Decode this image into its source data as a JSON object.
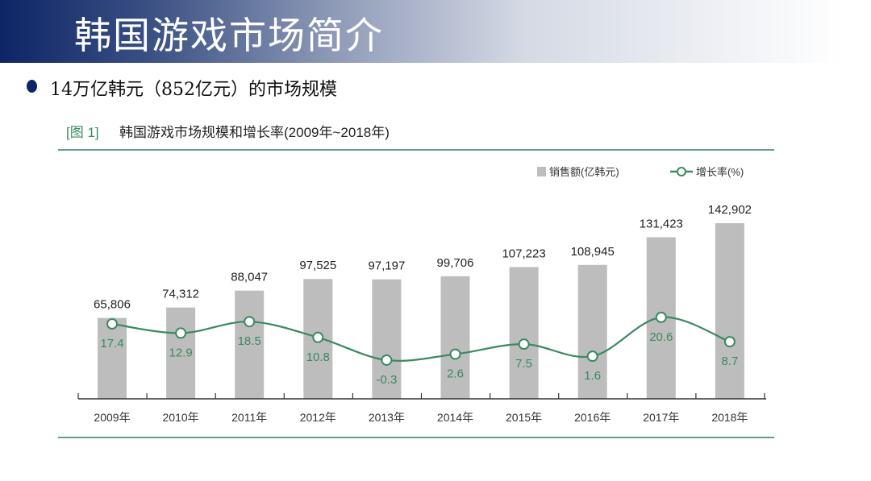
{
  "header": {
    "title": "韩国游戏市场简介"
  },
  "bullet": {
    "text": "14万亿韩元（852亿元）的市场规模"
  },
  "chart_data": {
    "type": "bar",
    "figure_label": "[图 1]",
    "title": "韩国游戏市场规模和增长率(2009年~2018年)",
    "categories": [
      "2009年",
      "2010年",
      "2011年",
      "2012年",
      "2013年",
      "2014年",
      "2015年",
      "2016年",
      "2017年",
      "2018年"
    ],
    "series": [
      {
        "name": "销售额(亿韩元)",
        "type": "bar",
        "color": "#bdbdbd",
        "values": [
          65806,
          74312,
          88047,
          97525,
          97197,
          99706,
          107223,
          108945,
          131423,
          142902
        ],
        "labels": [
          "65,806",
          "74,312",
          "88,047",
          "97,525",
          "97,197",
          "99,706",
          "107,223",
          "108,945",
          "131,423",
          "142,902"
        ]
      },
      {
        "name": "增长率(%)",
        "type": "line",
        "color": "#3a8a60",
        "values": [
          17.4,
          12.9,
          18.5,
          10.8,
          -0.3,
          2.6,
          7.5,
          1.6,
          20.6,
          8.7
        ],
        "labels": [
          "17.4",
          "12.9",
          "18.5",
          "10.8",
          "-0.3",
          "2.6",
          "7.5",
          "1.6",
          "20.6",
          "8.7"
        ]
      }
    ],
    "legend_position": "top-right",
    "grid": false
  }
}
